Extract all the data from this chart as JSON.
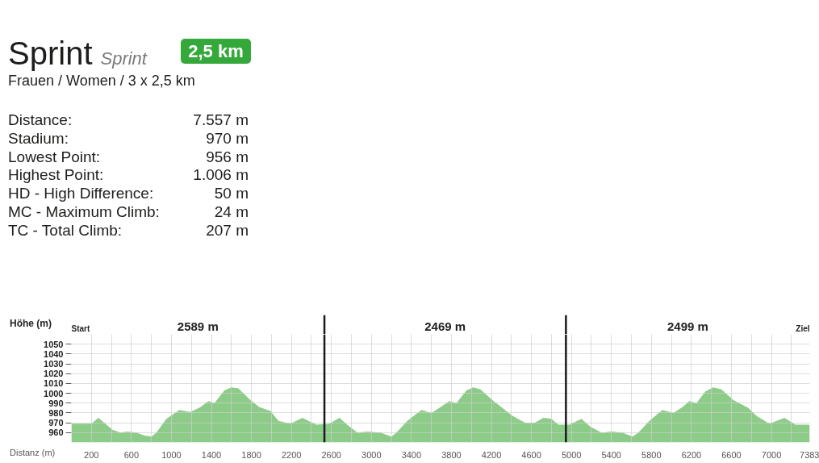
{
  "chart_data": [
    {
      "type": "other",
      "title": "Sprint",
      "subtitle": "Frauen / Women / 3 x 2,5 km",
      "annotations": [
        "Sprint",
        "2,5 km",
        "Distance:",
        "7.557 m",
        "Stadium:",
        "970 m",
        "Lowest Point:",
        "956 m",
        "Highest Point:",
        "1.006 m",
        "HD - High Difference:",
        "50 m",
        "MC - Maximum Climb:",
        "24 m",
        "TC - Total Climb:",
        "207 m"
      ]
    },
    {
      "type": "area",
      "xlabel": "Distanz (m)",
      "ylabel": "Höhe (m)",
      "color": "#8ccc88",
      "x": [
        0,
        200,
        270,
        410,
        490,
        560,
        650,
        730,
        800,
        850,
        950,
        1080,
        1190,
        1290,
        1370,
        1430,
        1530,
        1600,
        1670,
        1790,
        1880,
        1990,
        2070,
        2190,
        2310,
        2390,
        2450,
        2580,
        2680,
        2770,
        2860,
        2960,
        3090,
        3200,
        3250,
        3360,
        3500,
        3600,
        3690,
        3780,
        3850,
        3950,
        4020,
        4090,
        4210,
        4300,
        4410,
        4540,
        4630,
        4720,
        4800,
        4870,
        4980,
        5100,
        5190,
        5300,
        5410,
        5510,
        5610,
        5670,
        5780,
        5910,
        6020,
        6110,
        6180,
        6250,
        6340,
        6420,
        6500,
        6620,
        6770,
        6850,
        6980,
        7130,
        7240,
        7383
      ],
      "values": [
        969,
        969,
        975,
        963,
        960,
        961,
        960,
        957,
        956,
        960,
        974,
        983,
        981,
        986,
        992,
        990,
        1003,
        1006,
        1005,
        993,
        986,
        982,
        972,
        969,
        975,
        971,
        968,
        969,
        975,
        967,
        960,
        961,
        960,
        956,
        960,
        972,
        983,
        980,
        986,
        992,
        990,
        1003,
        1006,
        1004,
        993,
        986,
        977,
        970,
        970,
        975,
        974,
        968,
        968,
        974,
        966,
        960,
        961,
        960,
        956,
        960,
        972,
        983,
        980,
        986,
        992,
        990,
        1002,
        1006,
        1004,
        993,
        985,
        977,
        969,
        975,
        968,
        968
      ],
      "xlim": [
        0,
        7383
      ],
      "ylim": [
        950,
        1060
      ],
      "xticks": [
        200,
        {
          "value": 400,
          "label": null
        },
        600,
        {
          "value": 800,
          "label": null
        },
        1000,
        {
          "value": 1200,
          "label": null
        },
        1400,
        {
          "value": 1600,
          "label": null
        },
        1800,
        {
          "value": 2000,
          "label": null
        },
        2200,
        {
          "value": 2400,
          "label": null
        },
        2600,
        {
          "value": 2800,
          "label": null
        },
        3000,
        {
          "value": 3200,
          "label": null
        },
        3400,
        {
          "value": 3600,
          "label": null
        },
        3800,
        {
          "value": 4000,
          "label": null
        },
        4200,
        {
          "value": 4400,
          "label": null
        },
        4600,
        {
          "value": 4800,
          "label": null
        },
        5000,
        {
          "value": 5200,
          "label": null
        },
        5400,
        {
          "value": 5600,
          "label": null
        },
        5800,
        {
          "value": 6000,
          "label": null
        },
        6200,
        {
          "value": 6400,
          "label": null
        },
        6600,
        {
          "value": 6800,
          "label": null
        },
        7000,
        {
          "value": 7200,
          "label": null
        },
        7383
      ],
      "yticks": [
        960,
        970,
        980,
        990,
        1000,
        1010,
        1020,
        1030,
        1040,
        1050
      ],
      "grid": true,
      "ref_lines": [
        {
          "axis": "x",
          "value": 2530,
          "color": "#1a1a1a"
        },
        {
          "axis": "x",
          "value": 4945,
          "color": "#1a1a1a"
        }
      ],
      "annotations": [
        "Start",
        "2589 m",
        "2469 m",
        "2499 m",
        "Ziel"
      ]
    }
  ]
}
